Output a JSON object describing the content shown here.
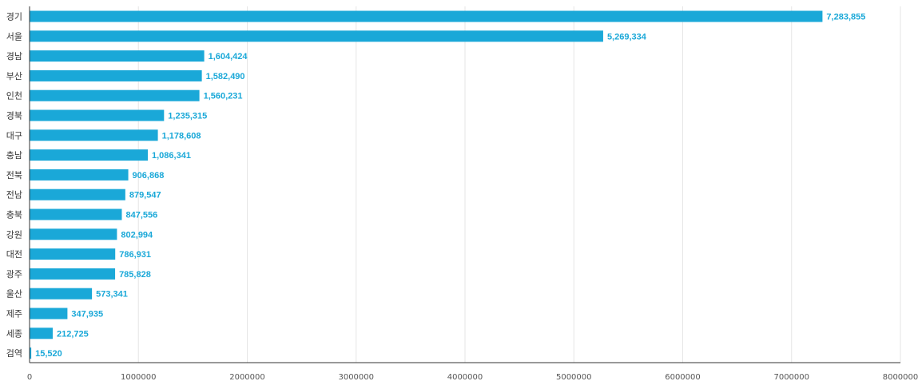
{
  "chart_data": {
    "type": "bar",
    "orientation": "horizontal",
    "categories": [
      "경기",
      "서울",
      "경남",
      "부산",
      "인천",
      "경북",
      "대구",
      "충남",
      "전북",
      "전남",
      "충북",
      "강원",
      "대전",
      "광주",
      "울산",
      "제주",
      "세종",
      "검역"
    ],
    "values": [
      7283855,
      5269334,
      1604424,
      1582490,
      1560231,
      1235315,
      1178608,
      1086341,
      906868,
      879547,
      847556,
      802994,
      786931,
      785828,
      573341,
      347935,
      212725,
      15520
    ],
    "value_labels": [
      "7,283,855",
      "5,269,334",
      "1,604,424",
      "1,582,490",
      "1,560,231",
      "1,235,315",
      "1,178,608",
      "1,086,341",
      "906,868",
      "879,547",
      "847,556",
      "802,994",
      "786,931",
      "785,828",
      "573,341",
      "347,935",
      "212,725",
      "15,520"
    ],
    "x_ticks": [
      0,
      1000000,
      2000000,
      3000000,
      4000000,
      5000000,
      6000000,
      7000000,
      8000000
    ],
    "x_tick_labels": [
      "0",
      "1000000",
      "2000000",
      "3000000",
      "4000000",
      "5000000",
      "6000000",
      "7000000",
      "8000000"
    ],
    "xlim": [
      0,
      8000000
    ],
    "title": "",
    "xlabel": "",
    "ylabel": "",
    "grid": "vertical",
    "legend": "none",
    "bar_color": "#1aa8d8",
    "label_color": "#1aa8d8"
  }
}
